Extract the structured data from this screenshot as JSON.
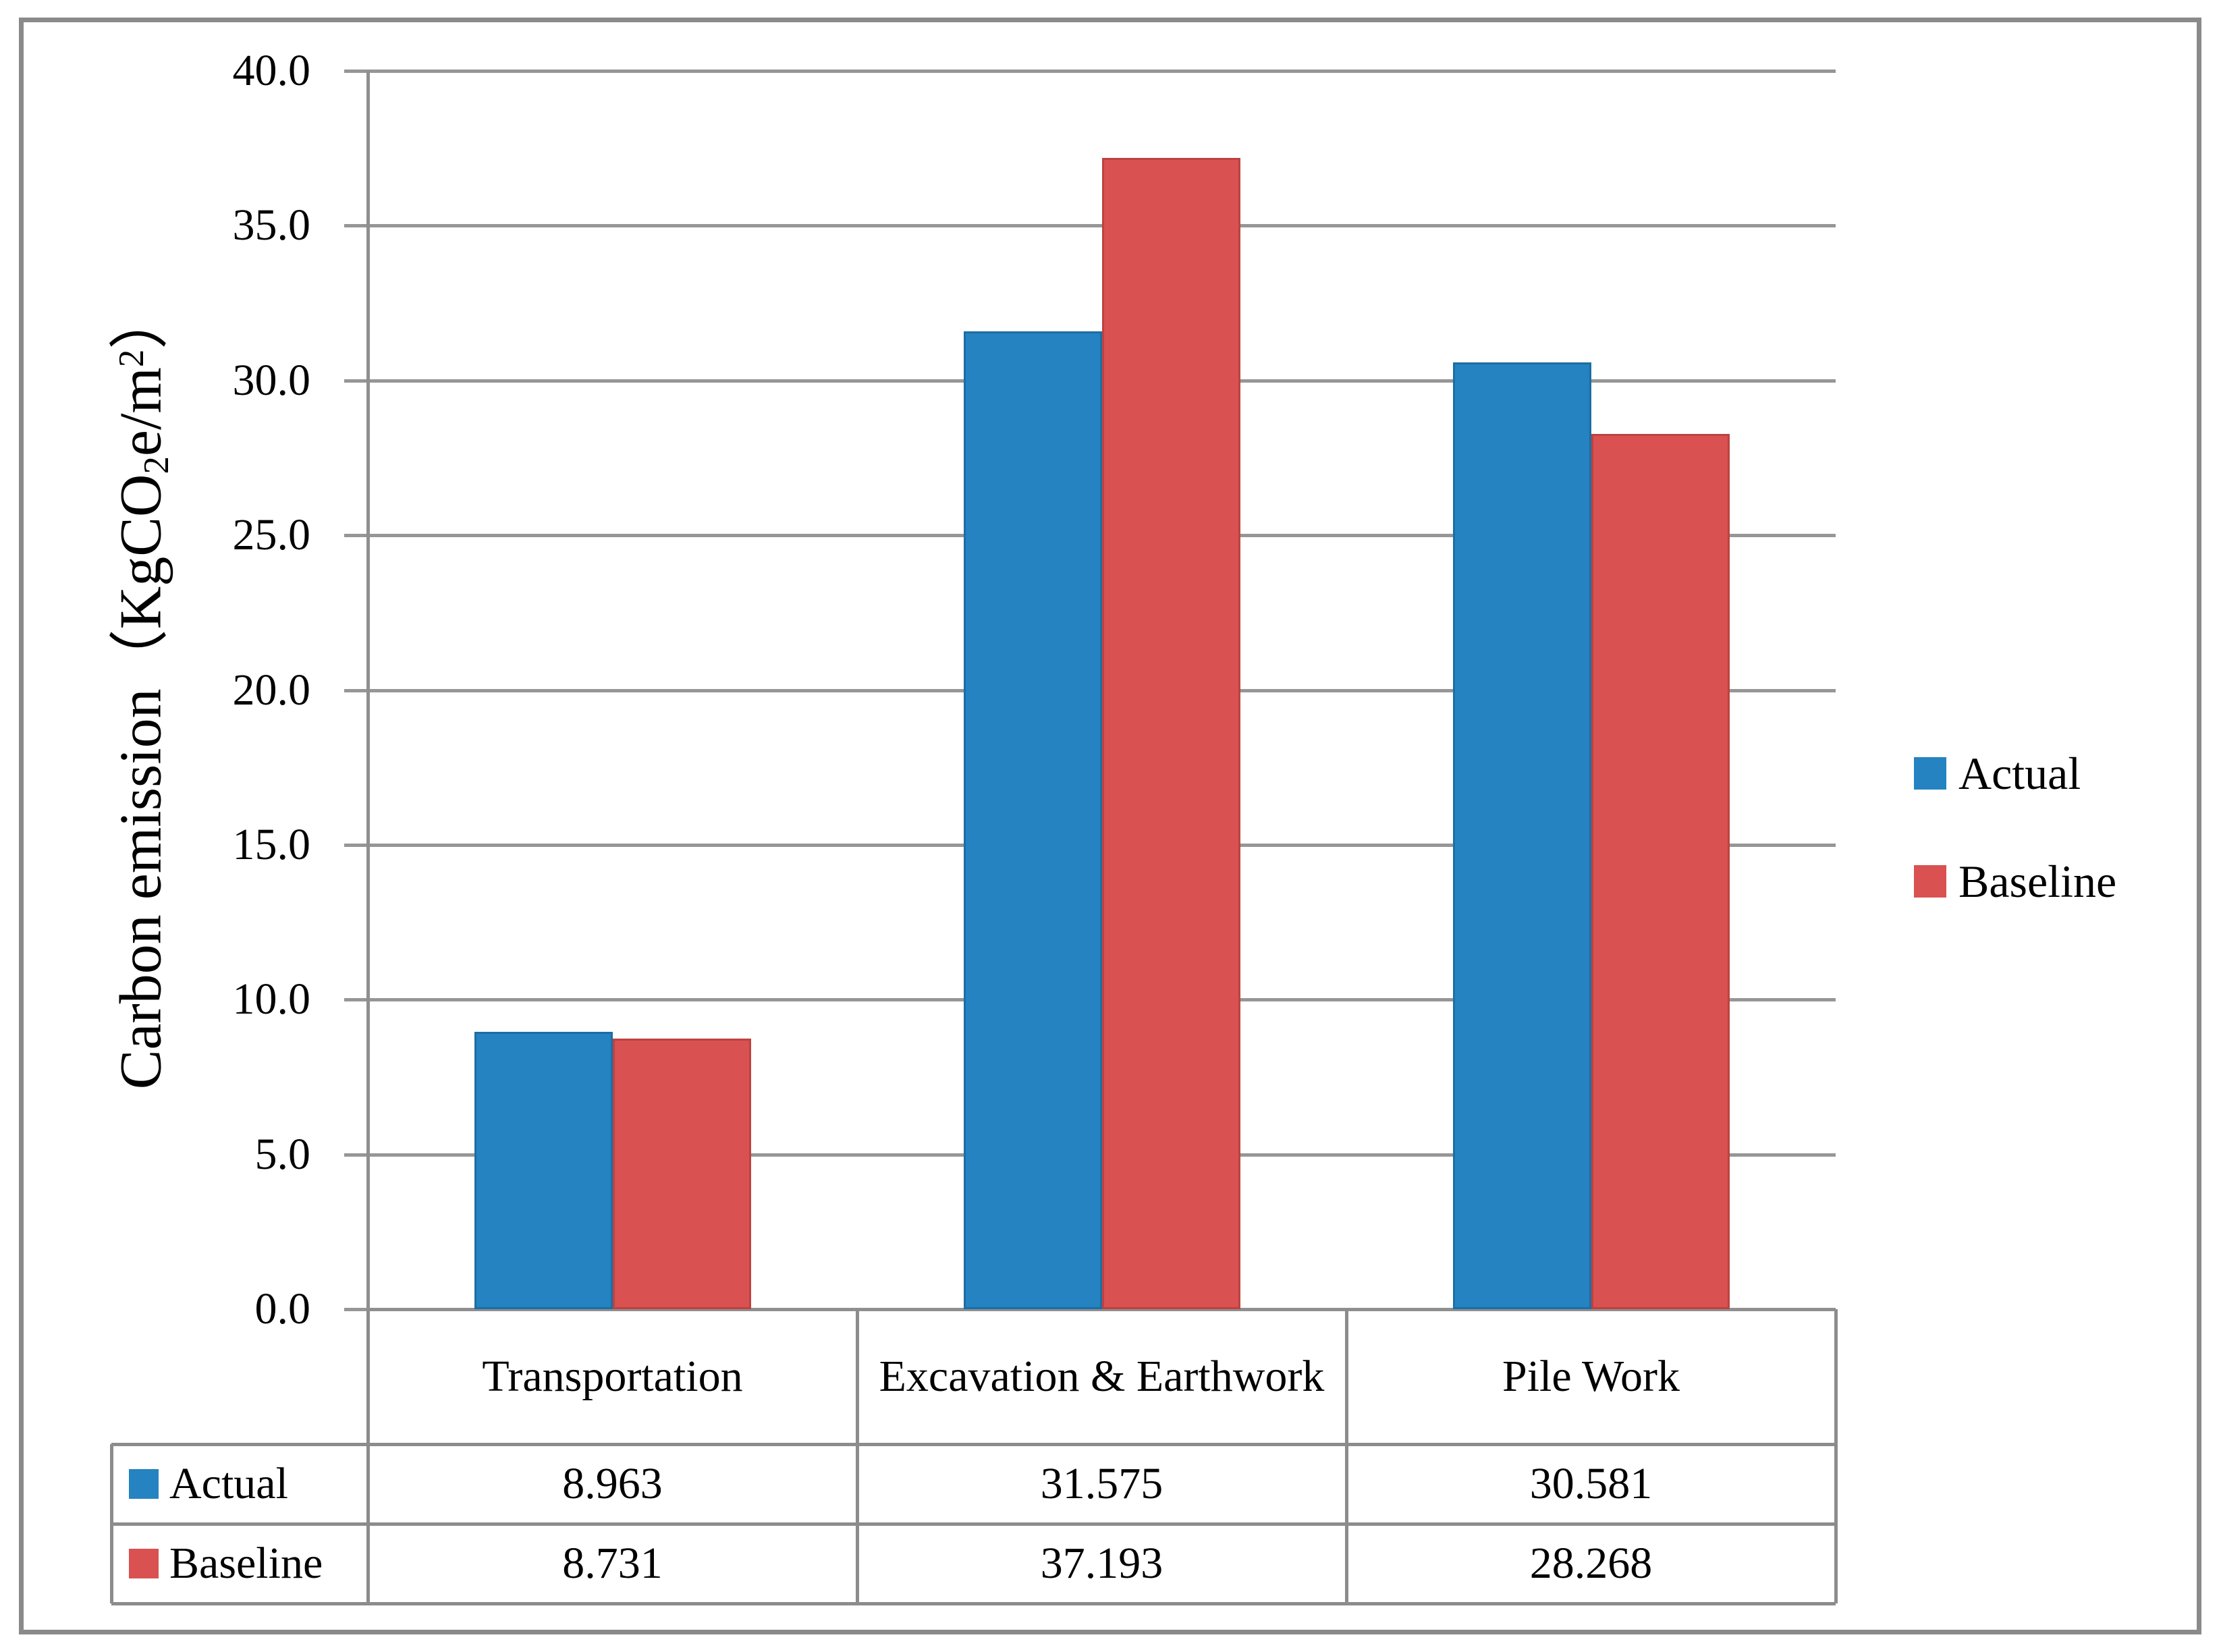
{
  "figure": {
    "border_color": "#8a8a8a",
    "background": "#ffffff"
  },
  "chart_data": {
    "type": "bar",
    "title": "",
    "categories": [
      "Transportation",
      "Excavation & Earthwork",
      "Pile Work"
    ],
    "series": [
      {
        "name": "Actual",
        "color": "#2483c0",
        "border_color": "#1d6ea3",
        "values": [
          8.963,
          31.575,
          30.581
        ]
      },
      {
        "name": "Baseline",
        "color": "#d95150",
        "border_color": "#bc4241",
        "values": [
          8.731,
          37.193,
          28.268
        ]
      }
    ],
    "ylabel_parts": {
      "text": "Carbon emission",
      "open": "（",
      "pre_sub": "KgCO",
      "sub": "2",
      "mid": "e/m",
      "sup": "2",
      "close": "）"
    },
    "yticks": [
      "40.0",
      "35.0",
      "30.0",
      "25.0",
      "20.0",
      "15.0",
      "10.0",
      "5.0",
      "0.0"
    ],
    "ylim": [
      0,
      40
    ],
    "grid": true,
    "gridline_color": "#969696",
    "legend_position": "right",
    "legend_entries": [
      "Actual",
      "Baseline"
    ]
  },
  "table": {
    "border_color": "#8c8c8c",
    "header": [
      "Transportation",
      "Excavation & Earthwork",
      "Pile Work"
    ],
    "rows": [
      {
        "label": "Actual",
        "key_color": "#2483c0",
        "values": [
          "8.963",
          "31.575",
          "30.581"
        ]
      },
      {
        "label": "Baseline",
        "key_color": "#d95150",
        "values": [
          "8.731",
          "37.193",
          "28.268"
        ]
      }
    ]
  }
}
